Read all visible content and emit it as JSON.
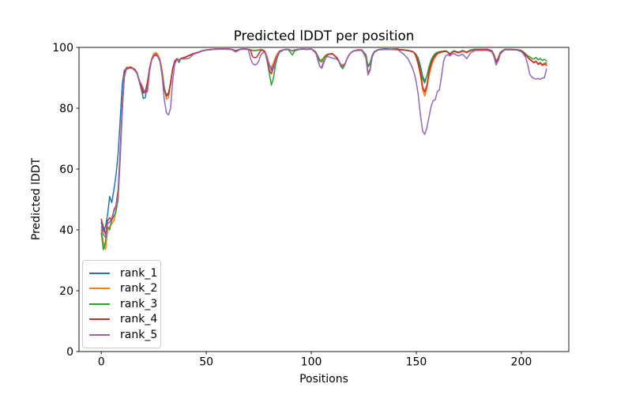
{
  "chart_data": {
    "type": "line",
    "title": "Predicted lDDT per position",
    "xlabel": "Positions",
    "ylabel": "Predicted lDDT",
    "xlim": [
      -10.6,
      222.6
    ],
    "ylim": [
      0,
      100
    ],
    "xticks": [
      0,
      50,
      100,
      150,
      200
    ],
    "yticks": [
      0,
      20,
      40,
      60,
      80,
      100
    ],
    "grid": false,
    "legend_position": "lower-left",
    "x": [
      0,
      1,
      2,
      3,
      4,
      5,
      6,
      7,
      8,
      9,
      10,
      11,
      12,
      13,
      14,
      15,
      16,
      17,
      18,
      19,
      20,
      21,
      22,
      23,
      24,
      25,
      26,
      27,
      28,
      29,
      30,
      31,
      32,
      33,
      34,
      35,
      36,
      37,
      38,
      40,
      42,
      44,
      46,
      48,
      50,
      53,
      56,
      59,
      62,
      64,
      66,
      68,
      70,
      71,
      72,
      73,
      74,
      75,
      76,
      77,
      78,
      79,
      80,
      81,
      82,
      83,
      84,
      85,
      87,
      89,
      91,
      92,
      94,
      96,
      98,
      100,
      102,
      103,
      104,
      105,
      106,
      107,
      108,
      110,
      112,
      113,
      114,
      115,
      116,
      117,
      118,
      119,
      120,
      122,
      124,
      126,
      127,
      128,
      129,
      130,
      132,
      135,
      138,
      141,
      142,
      144,
      146,
      148,
      149,
      150,
      151,
      152,
      153,
      154,
      155,
      156,
      157,
      158,
      159,
      160,
      161,
      162,
      163,
      164,
      165,
      166,
      167,
      168,
      170,
      172,
      174,
      176,
      178,
      181,
      184,
      186,
      187,
      188,
      189,
      190,
      192,
      195,
      198,
      200,
      201,
      202,
      203,
      204,
      205,
      206,
      207,
      208,
      209,
      210,
      211,
      212
    ],
    "series": [
      {
        "name": "rank_1",
        "color": "#1f77b4",
        "values": [
          42.5,
          39.5,
          41,
          45,
          51,
          49,
          53,
          58,
          65,
          76,
          88,
          92.5,
          93,
          93.2,
          93.4,
          93,
          92.6,
          91.5,
          89,
          86.5,
          83.2,
          83.5,
          88,
          93,
          96,
          97.3,
          97.8,
          97,
          95.5,
          91,
          86,
          84.5,
          85,
          88.5,
          93,
          95.5,
          96.3,
          95.8,
          96.4,
          96.8,
          97.4,
          98,
          98.4,
          98.9,
          99.2,
          99.4,
          99.5,
          99.5,
          99.4,
          98.9,
          99.4,
          99.5,
          99.4,
          99.2,
          99.1,
          99,
          99.1,
          99.2,
          99.3,
          99.1,
          98.4,
          96.5,
          94.5,
          92.5,
          94,
          96.5,
          98,
          98.8,
          99.3,
          99.4,
          98.8,
          99.2,
          99.4,
          99.5,
          99.4,
          99.5,
          98.6,
          97.4,
          96,
          95.8,
          96.8,
          97.5,
          97.8,
          98,
          96.8,
          95.8,
          94.3,
          94,
          94.5,
          96.3,
          97.6,
          98.4,
          98.8,
          99.2,
          99.2,
          97.5,
          93.5,
          94.5,
          97.3,
          98.6,
          99.3,
          99.5,
          99.4,
          99.5,
          99.3,
          99.2,
          99,
          98.7,
          98.3,
          97.6,
          96.3,
          93.8,
          90.5,
          89,
          90.5,
          93,
          95.3,
          96.8,
          97.6,
          98.2,
          98.5,
          98.6,
          98.7,
          98.8,
          98.4,
          97.8,
          98.4,
          98.8,
          98.3,
          98.9,
          98.4,
          99.1,
          99.3,
          99.3,
          99.3,
          98.8,
          97.5,
          95.5,
          96.5,
          98.3,
          99.3,
          99.3,
          99.3,
          98.9,
          98.4,
          97.6,
          96.9,
          96.2,
          95.7,
          95.1,
          95.5,
          94.7,
          95.1,
          94.4,
          94.8,
          94.9
        ]
      },
      {
        "name": "rank_2",
        "color": "#ff7f0e",
        "values": [
          40,
          36,
          33.5,
          40,
          41,
          42,
          43,
          46,
          52,
          65,
          80,
          90,
          93.5,
          93.4,
          93.6,
          93.2,
          92.8,
          91.8,
          89.5,
          88,
          86,
          85.5,
          89,
          93.2,
          96.2,
          98,
          98.3,
          97.5,
          96,
          92.5,
          87,
          83,
          83.5,
          88,
          93,
          95.5,
          96.3,
          95.8,
          96.4,
          96.8,
          97.4,
          98,
          98.4,
          98.9,
          99.2,
          99.4,
          99.5,
          99.5,
          99.4,
          98.9,
          99.4,
          99.5,
          99.4,
          99.2,
          99.1,
          99,
          99.1,
          99.2,
          99.4,
          99.2,
          98.6,
          97,
          94,
          93.5,
          95,
          96.8,
          98.1,
          98.8,
          99.3,
          99.4,
          98.9,
          99.2,
          99.4,
          99.5,
          99.4,
          99.5,
          98.6,
          97.5,
          95.8,
          95.5,
          96.8,
          97.5,
          97.8,
          98,
          96.8,
          95.8,
          94.5,
          94.2,
          94.7,
          96.3,
          97.6,
          98.4,
          98.8,
          99.2,
          99.2,
          97.6,
          93.8,
          94.8,
          97.3,
          98.6,
          99.3,
          99.5,
          99.4,
          99.5,
          99.3,
          99.2,
          99,
          98.7,
          98.2,
          96.5,
          94,
          90.5,
          86,
          84,
          86.5,
          90.5,
          93.5,
          95.5,
          96.8,
          97.8,
          98.2,
          98.4,
          98.6,
          98.7,
          98.3,
          97.7,
          98.3,
          98.7,
          98.2,
          98.8,
          98.3,
          99,
          99.2,
          99.3,
          99.3,
          98.7,
          97.4,
          95.3,
          96.4,
          98.2,
          99.2,
          99.3,
          99.2,
          98.8,
          98.3,
          97.5,
          96.8,
          96.1,
          95.6,
          95,
          95.4,
          94.6,
          95,
          94.3,
          94.7,
          94.6
        ]
      },
      {
        "name": "rank_3",
        "color": "#2ca02c",
        "values": [
          39,
          33.5,
          36,
          41,
          40,
          43.5,
          44.5,
          46,
          50,
          63,
          79,
          91,
          93,
          93.1,
          93.3,
          93,
          92.5,
          91.6,
          89.2,
          87.5,
          85.5,
          85,
          88,
          93,
          96,
          97.2,
          97.7,
          96.8,
          95.3,
          91.5,
          86.5,
          84.3,
          85,
          88.5,
          93,
          95.5,
          96.2,
          95,
          96.3,
          96.7,
          97.3,
          97.9,
          98.3,
          98.8,
          99.1,
          99.3,
          99.4,
          99.4,
          99.3,
          98.8,
          99.3,
          99.4,
          99.3,
          99.1,
          99,
          98.9,
          99,
          99.1,
          99.2,
          99,
          98.2,
          95.5,
          91.5,
          87.6,
          90,
          94.5,
          97,
          98.5,
          99.2,
          99.3,
          97.5,
          98.8,
          99.3,
          99.4,
          99.3,
          99.4,
          98.5,
          97.2,
          95.5,
          95.2,
          96.5,
          97.4,
          97.7,
          97.9,
          96.6,
          95.5,
          93.8,
          93,
          94.3,
          96.2,
          97.5,
          98.3,
          98.7,
          99.1,
          99.1,
          97.7,
          94,
          94.9,
          97.4,
          98.6,
          99.3,
          99.4,
          99.3,
          99.4,
          99.2,
          99.1,
          98.9,
          98.6,
          98.2,
          97.4,
          95.5,
          92.5,
          89.5,
          88.3,
          90.5,
          93.5,
          95.8,
          97.2,
          98,
          98.4,
          98.6,
          98.7,
          98.8,
          98.9,
          98.5,
          97.9,
          98.5,
          98.9,
          98.4,
          99,
          98.5,
          99.2,
          99.4,
          99.4,
          99.4,
          98.9,
          97.6,
          95,
          96.6,
          98.4,
          99.4,
          99.4,
          99.3,
          99,
          98.5,
          97.9,
          97.3,
          96.9,
          96.4,
          96.2,
          96.7,
          95.9,
          96.4,
          95.7,
          96.1,
          95.5
        ]
      },
      {
        "name": "rank_4",
        "color": "#d62728",
        "values": [
          43.5,
          41,
          38.5,
          43,
          44,
          43,
          46.5,
          48,
          53,
          66,
          81,
          91.5,
          93.2,
          93.3,
          93.5,
          93.1,
          92.7,
          91.7,
          89.3,
          87,
          85,
          85.5,
          88.5,
          93.1,
          96.1,
          97.3,
          97.8,
          97,
          95.4,
          91,
          86,
          84,
          84.5,
          88,
          93,
          95.5,
          96.3,
          95.8,
          96.4,
          96.8,
          97.4,
          98,
          98.4,
          98.9,
          99.2,
          99.4,
          99.5,
          99.5,
          99.4,
          98.9,
          99.4,
          99.5,
          99.4,
          99.2,
          97,
          96.6,
          96.8,
          98,
          99,
          99.1,
          98.4,
          96,
          92.5,
          91.3,
          93.5,
          96.2,
          97.8,
          98.8,
          99.3,
          99.4,
          98.8,
          99.2,
          99.4,
          99.5,
          99.4,
          99.5,
          98.5,
          96.2,
          93.8,
          93.4,
          95.5,
          96.8,
          97.7,
          97.9,
          96.7,
          95.7,
          94.2,
          93.9,
          94.4,
          96.2,
          97.5,
          98.3,
          98.8,
          99.2,
          99.2,
          96.5,
          91.4,
          93,
          96.8,
          98.5,
          99.3,
          99.5,
          99.4,
          99.5,
          99.3,
          99.2,
          99,
          98.7,
          98.2,
          97,
          94.5,
          91.5,
          87,
          85.3,
          87.5,
          91.5,
          94.5,
          96.3,
          97.3,
          98,
          98.3,
          98.5,
          98.6,
          98.7,
          98.3,
          97.7,
          98.3,
          98.7,
          98.2,
          98.8,
          98.3,
          99,
          99.2,
          99.3,
          99.3,
          98.7,
          97.4,
          95.2,
          96.3,
          98.2,
          99.2,
          99.3,
          99.2,
          98.8,
          98.3,
          97.4,
          96.7,
          96,
          95.5,
          94.9,
          95.3,
          94.4,
          94.8,
          94.1,
          94.5,
          94.1
        ]
      },
      {
        "name": "rank_5",
        "color": "#9467bd",
        "values": [
          41,
          38.5,
          37.5,
          42,
          42.5,
          44,
          46,
          47.5,
          51,
          64,
          80,
          90.5,
          92.8,
          93,
          93.2,
          92.9,
          92.4,
          91.4,
          89,
          88,
          86.5,
          84.8,
          85.5,
          92,
          95.8,
          97,
          97.5,
          96.8,
          95.2,
          90.5,
          83,
          78.5,
          77.8,
          80,
          89,
          94.5,
          96,
          95.6,
          96.2,
          96.2,
          96.5,
          97.8,
          98.2,
          98.8,
          99.1,
          99.3,
          99.4,
          99.4,
          99.3,
          98.5,
          99.3,
          99.4,
          99.3,
          96.5,
          94.8,
          94.2,
          94.5,
          95.5,
          97.5,
          98.3,
          98.2,
          96.5,
          94,
          93.3,
          93,
          95.5,
          97.5,
          98.5,
          99.3,
          99.4,
          98.9,
          99.2,
          99.4,
          99.5,
          99.4,
          99.5,
          98.2,
          96.5,
          93.8,
          93.1,
          95,
          96.8,
          97,
          96.5,
          96.2,
          95.5,
          94.3,
          93.6,
          94.5,
          96.2,
          97.5,
          98.3,
          98.8,
          99,
          99,
          96.8,
          90.9,
          92.5,
          96.8,
          98.4,
          99.2,
          99.3,
          99.3,
          99.2,
          98.8,
          97.8,
          96.3,
          93.5,
          91.5,
          88.5,
          84,
          77.5,
          72.5,
          71.4,
          73.5,
          77,
          80.5,
          82.5,
          82.8,
          85.5,
          86,
          90.5,
          95.5,
          97.3,
          97.6,
          97.2,
          97.8,
          98,
          97.2,
          97.8,
          96.3,
          98.3,
          99,
          99,
          99,
          98.5,
          96.8,
          94.2,
          95.5,
          97.8,
          99.2,
          99.2,
          99.1,
          98.6,
          97.8,
          96.8,
          94.5,
          91.2,
          90.2,
          89.8,
          89.6,
          89.8,
          89.5,
          89.9,
          90.1,
          92.9
        ]
      }
    ]
  }
}
